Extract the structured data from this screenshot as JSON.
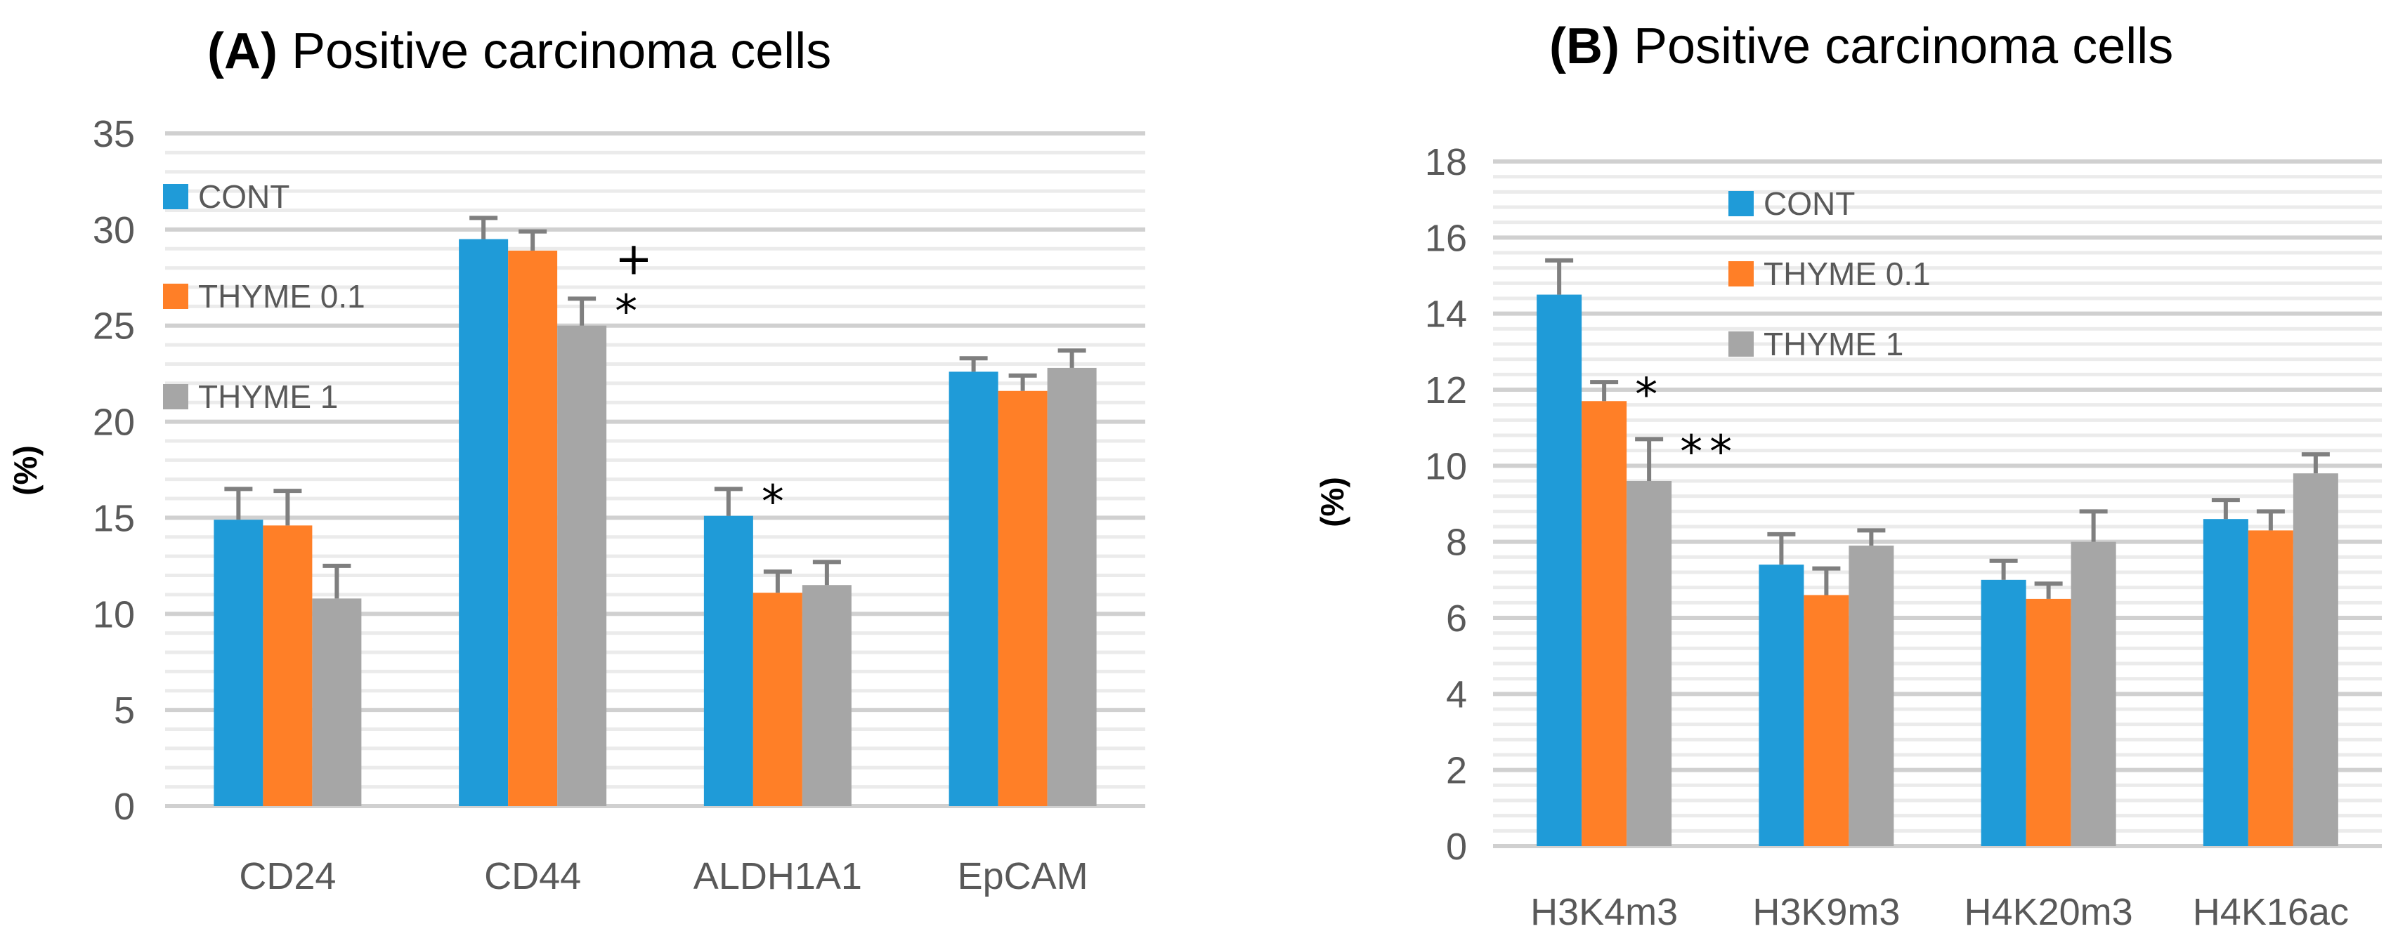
{
  "colors": {
    "cont": "#1F9BD8",
    "thyme01": "#FF7F27",
    "thyme1": "#A6A6A6",
    "error": "#7F7F7F",
    "grid_major": "#D0D0D0",
    "grid_minor": "#EBEBEB",
    "axis_text": "#595959"
  },
  "chart_data": [
    {
      "type": "bar",
      "title_prefix": "(A)",
      "title": "Positive carcinoma cells",
      "ylabel": "(%)",
      "ylim": [
        0,
        35
      ],
      "yticks": [
        0,
        5,
        10,
        15,
        20,
        25,
        30,
        35
      ],
      "minor_step": 1,
      "categories": [
        "CD24",
        "CD44",
        "ALDH1A1",
        "EpCAM"
      ],
      "series": [
        {
          "name": "CONT",
          "values": [
            14.9,
            29.5,
            15.1,
            22.6
          ],
          "errors": [
            1.6,
            1.1,
            1.4,
            0.7
          ]
        },
        {
          "name": "THYME 0.1",
          "values": [
            14.6,
            28.9,
            11.1,
            21.6
          ],
          "errors": [
            1.8,
            1.0,
            1.1,
            0.8
          ]
        },
        {
          "name": "THYME 1",
          "values": [
            10.8,
            25.0,
            11.5,
            22.8
          ],
          "errors": [
            1.7,
            1.4,
            1.2,
            0.9
          ]
        }
      ],
      "annotations": [
        {
          "text": "+",
          "category": 1,
          "series": 2,
          "level": 1
        },
        {
          "text": "*",
          "category": 1,
          "series": 2,
          "level": 0
        },
        {
          "text": "*",
          "category": 2,
          "series": 0,
          "level": 0
        }
      ],
      "legend_position": "left"
    },
    {
      "type": "bar",
      "title_prefix": "(B)",
      "title": "Positive carcinoma cells",
      "ylabel": "(%)",
      "ylim": [
        0,
        18
      ],
      "yticks": [
        0,
        2,
        4,
        6,
        8,
        10,
        12,
        14,
        16,
        18
      ],
      "minor_step": 0.4,
      "categories": [
        "H3K4m3",
        "H3K9m3",
        "H4K20m3",
        "H4K16ac"
      ],
      "series": [
        {
          "name": "CONT",
          "values": [
            14.5,
            7.4,
            7.0,
            8.6
          ],
          "errors": [
            0.9,
            0.8,
            0.5,
            0.5
          ]
        },
        {
          "name": "THYME 0.1",
          "values": [
            11.7,
            6.6,
            6.5,
            8.3
          ],
          "errors": [
            0.5,
            0.7,
            0.4,
            0.5
          ]
        },
        {
          "name": "THYME 1",
          "values": [
            9.6,
            7.9,
            8.0,
            9.8
          ],
          "errors": [
            1.1,
            0.4,
            0.8,
            0.5
          ]
        }
      ],
      "annotations": [
        {
          "text": "*",
          "category": 0,
          "series": 1,
          "level": 0
        },
        {
          "text": "**",
          "category": 0,
          "series": 2,
          "level": 0
        }
      ],
      "legend_position": "center-left"
    }
  ]
}
